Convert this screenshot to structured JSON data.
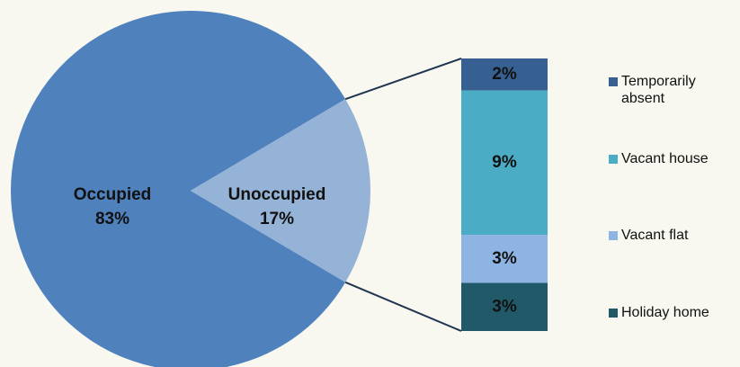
{
  "chart_data": {
    "type": "bar-of-pie",
    "pie": {
      "categories": [
        "Occupied",
        "Unoccupied"
      ],
      "values": [
        83,
        17
      ],
      "value_labels": [
        "83%",
        "17%"
      ],
      "colors": [
        "#4f81bd",
        "#95b3d7"
      ]
    },
    "bar": {
      "series": [
        {
          "name": "Temporarily absent",
          "color": "#376092",
          "values": [
            2
          ],
          "value_labels": [
            "2%"
          ]
        },
        {
          "name": "Vacant house",
          "color": "#4bacc6",
          "values": [
            9
          ],
          "value_labels": [
            "9%"
          ]
        },
        {
          "name": "Vacant flat",
          "color": "#8eb4e3",
          "values": [
            3
          ],
          "value_labels": [
            "3%"
          ]
        },
        {
          "name": "Holiday home",
          "color": "#215968",
          "values": [
            3
          ],
          "value_labels": [
            "3%"
          ]
        }
      ]
    }
  }
}
